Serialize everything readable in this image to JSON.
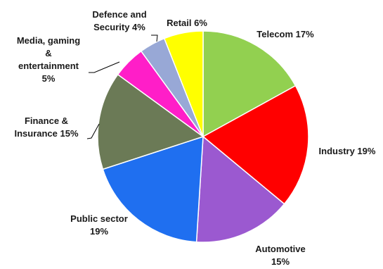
{
  "chart_data": {
    "type": "pie",
    "title": "",
    "start_angle_deg": 0,
    "direction": "clockwise",
    "slices": [
      {
        "name": "Telecom",
        "value": 17,
        "color": "#92d050",
        "label_lines": [
          "Telecom 17%"
        ]
      },
      {
        "name": "Industry",
        "value": 19,
        "color": "#ff0000",
        "label_lines": [
          "Industry 19%"
        ]
      },
      {
        "name": "Automotive",
        "value": 15,
        "color": "#9b59d0",
        "label_lines": [
          "Automotive",
          "15%"
        ]
      },
      {
        "name": "Public sector",
        "value": 19,
        "color": "#1f6ff0",
        "label_lines": [
          "Public sector",
          "19%"
        ]
      },
      {
        "name": "Finance & Insurance",
        "value": 15,
        "color": "#6b7a56",
        "label_lines": [
          "Finance &",
          "Insurance 15%"
        ]
      },
      {
        "name": "Media, gaming & entertainment",
        "value": 5,
        "color": "#ff1ec8",
        "label_lines": [
          "Media, gaming",
          "&",
          "entertainment",
          "5%"
        ]
      },
      {
        "name": "Defence and Security",
        "value": 4,
        "color": "#98a8d6",
        "label_lines": [
          "Defence and",
          "Security 4%"
        ]
      },
      {
        "name": "Retail",
        "value": 6,
        "color": "#ffff00",
        "label_lines": [
          "Retail 6%"
        ]
      }
    ]
  }
}
